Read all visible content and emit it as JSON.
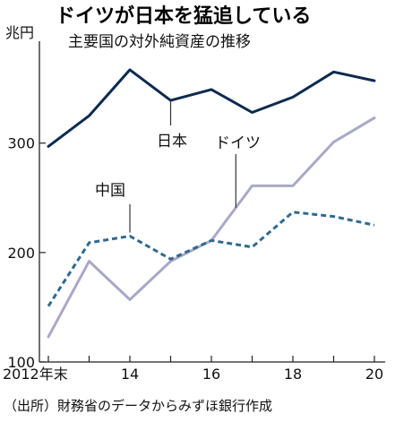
{
  "chart_data": {
    "type": "line",
    "title": "ドイツが日本を猛追している",
    "subtitle": "主要国の対外純資産の推移",
    "ylabel": "兆円",
    "source": "（出所）財務省のデータからみずほ銀行作成",
    "x": [
      2012,
      2013,
      2014,
      2015,
      2016,
      2017,
      2018,
      2019,
      2020
    ],
    "x_tick_values": [
      2012,
      2014,
      2016,
      2018,
      2020
    ],
    "x_tick_labels": [
      "2012年末",
      "14",
      "16",
      "18",
      "20"
    ],
    "y_ticks": [
      100,
      200,
      300
    ],
    "ylim": [
      100,
      380
    ],
    "grid": false,
    "series": [
      {
        "name": "日本",
        "color": "#0d2a4f",
        "style": "solid",
        "values": [
          297,
          325,
          367,
          339,
          349,
          328,
          342,
          365,
          357
        ]
      },
      {
        "name": "ドイツ",
        "color": "#a9a9c6",
        "style": "solid",
        "values": [
          123,
          192,
          157,
          192,
          211,
          261,
          261,
          301,
          323
        ]
      },
      {
        "name": "中国",
        "color": "#2f6a8f",
        "style": "dashed",
        "values": [
          151,
          209,
          215,
          194,
          211,
          205,
          237,
          233,
          225
        ]
      }
    ]
  }
}
